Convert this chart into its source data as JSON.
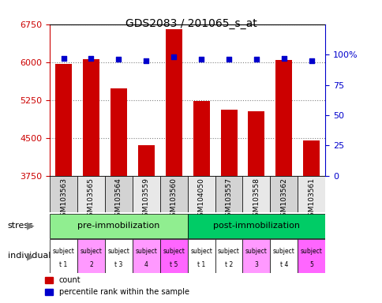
{
  "title": "GDS2083 / 201065_s_at",
  "samples": [
    "GSM103563",
    "GSM103565",
    "GSM103564",
    "GSM103559",
    "GSM103560",
    "GSM104050",
    "GSM103557",
    "GSM103558",
    "GSM103562",
    "GSM103561"
  ],
  "counts": [
    5960,
    6060,
    5480,
    4360,
    6650,
    5230,
    5060,
    5030,
    6050,
    4450
  ],
  "percentile_ranks": [
    97,
    97,
    96,
    95,
    98,
    96,
    96,
    96,
    97,
    95
  ],
  "ylim": [
    3750,
    6750
  ],
  "yticks": [
    3750,
    4500,
    5250,
    6000,
    6750
  ],
  "right_yticks": [
    0,
    25,
    50,
    75,
    100
  ],
  "bar_color": "#cc0000",
  "dot_color": "#0000cc",
  "stress_groups": [
    {
      "label": "pre-immobilization",
      "start": 0,
      "end": 5,
      "color": "#90ee90"
    },
    {
      "label": "post-immobilization",
      "start": 5,
      "end": 10,
      "color": "#00cc66"
    }
  ],
  "individuals": [
    {
      "label": "subject\nt 1",
      "idx": 0,
      "color": "#ffffff"
    },
    {
      "label": "subject\n2",
      "idx": 1,
      "color": "#ff99ff"
    },
    {
      "label": "subject\nt 3",
      "idx": 2,
      "color": "#ffffff"
    },
    {
      "label": "subject\n4",
      "idx": 3,
      "color": "#ff99ff"
    },
    {
      "label": "subject\nt 5",
      "idx": 4,
      "color": "#ff66ff"
    },
    {
      "label": "subject\nt 1",
      "idx": 5,
      "color": "#ffffff"
    },
    {
      "label": "subject\nt 2",
      "idx": 6,
      "color": "#ffffff"
    },
    {
      "label": "subject\n3",
      "idx": 7,
      "color": "#ff99ff"
    },
    {
      "label": "subject\nt 4",
      "idx": 8,
      "color": "#ffffff"
    },
    {
      "label": "subject\n5",
      "idx": 9,
      "color": "#ff66ff"
    }
  ],
  "stress_label": "stress",
  "individual_label": "individual",
  "legend_count_color": "#cc0000",
  "legend_dot_color": "#0000cc",
  "right_axis_color": "#0000cc",
  "left_axis_color": "#cc0000"
}
